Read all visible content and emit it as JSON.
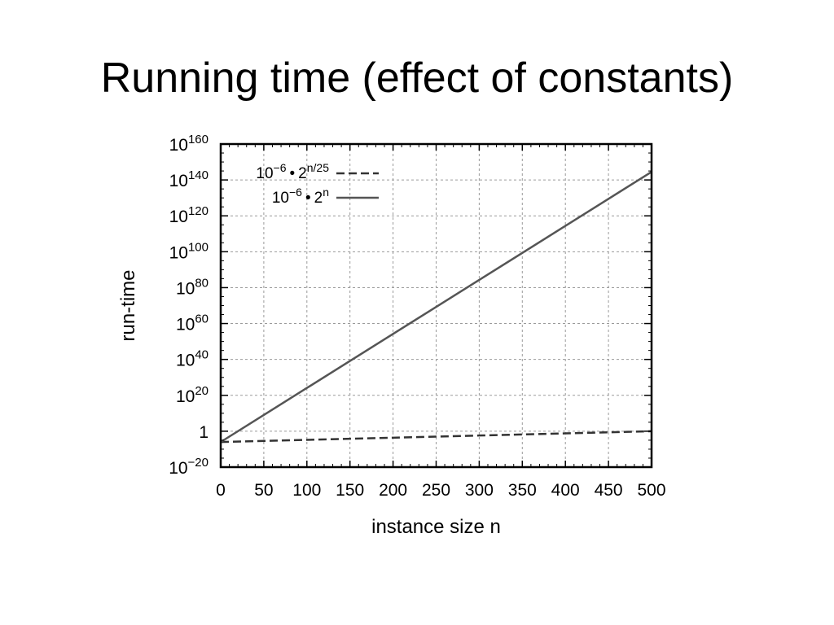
{
  "slide": {
    "title": "Running time (effect of constants)"
  },
  "chart_data": {
    "type": "line",
    "xlabel": "instance size n",
    "ylabel": "run-time",
    "xlim": [
      0,
      500
    ],
    "ylim_log10": [
      -20,
      160
    ],
    "y_scale": "log",
    "grid": true,
    "legend_position": "top-left",
    "x_ticks": [
      {
        "value": 0,
        "label": "0"
      },
      {
        "value": 50,
        "label": "50"
      },
      {
        "value": 100,
        "label": "100"
      },
      {
        "value": 150,
        "label": "150"
      },
      {
        "value": 200,
        "label": "200"
      },
      {
        "value": 250,
        "label": "250"
      },
      {
        "value": 300,
        "label": "300"
      },
      {
        "value": 350,
        "label": "350"
      },
      {
        "value": 400,
        "label": "400"
      },
      {
        "value": 450,
        "label": "450"
      },
      {
        "value": 500,
        "label": "500"
      }
    ],
    "y_ticks": [
      {
        "value": -20,
        "base": "10",
        "exp": "−20"
      },
      {
        "value": 0,
        "base": "1",
        "exp": ""
      },
      {
        "value": 20,
        "base": "10",
        "exp": "20"
      },
      {
        "value": 40,
        "base": "10",
        "exp": "40"
      },
      {
        "value": 60,
        "base": "10",
        "exp": "60"
      },
      {
        "value": 80,
        "base": "10",
        "exp": "80"
      },
      {
        "value": 100,
        "base": "10",
        "exp": "100"
      },
      {
        "value": 120,
        "base": "10",
        "exp": "120"
      },
      {
        "value": 140,
        "base": "10",
        "exp": "140"
      },
      {
        "value": 160,
        "base": "10",
        "exp": "160"
      }
    ],
    "series": [
      {
        "legend": {
          "coef": "10",
          "coef_exp": "−6",
          "dot": "•",
          "base": "2",
          "exp": "n/25"
        },
        "style": "dashed",
        "color": "#333333",
        "x": [
          0,
          100,
          200,
          300,
          400,
          500
        ],
        "y_log10": [
          -6,
          -4.8,
          -3.6,
          -2.4,
          -1.2,
          0
        ]
      },
      {
        "legend": {
          "coef": "10",
          "coef_exp": "−6",
          "dot": "•",
          "base": "2",
          "exp": "n"
        },
        "style": "solid",
        "color": "#555555",
        "x": [
          0,
          100,
          200,
          300,
          400,
          500
        ],
        "y_log10": [
          -6,
          24.1,
          54.2,
          84.3,
          114.4,
          144.5
        ]
      }
    ]
  }
}
